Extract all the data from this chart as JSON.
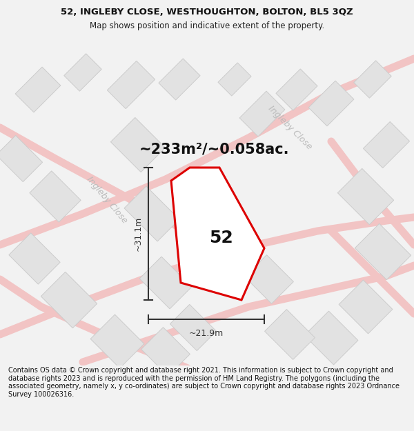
{
  "title": "52, INGLEBY CLOSE, WESTHOUGHTON, BOLTON, BL5 3QZ",
  "subtitle": "Map shows position and indicative extent of the property.",
  "footer": "Contains OS data © Crown copyright and database right 2021. This information is subject to Crown copyright and database rights 2023 and is reproduced with the permission of HM Land Registry. The polygons (including the associated geometry, namely x, y co-ordinates) are subject to Crown copyright and database rights 2023 Ordnance Survey 100026316.",
  "area_label": "~233m²/~0.058ac.",
  "number_label": "52",
  "dim_width_label": "~21.9m",
  "dim_height_label": "~31.1m",
  "bg_color": "#f2f2f2",
  "map_bg": "#f9f9f9",
  "road_color": "#f2c4c4",
  "building_fill": "#e2e2e2",
  "building_edge": "#cccccc",
  "plot_fill": "#ffffff",
  "plot_edge": "#dd0000",
  "street_label_color": "#bbbbbb",
  "dim_color": "#333333",
  "title_fontsize": 9.5,
  "subtitle_fontsize": 8.5,
  "footer_fontsize": 7.0,
  "area_fontsize": 15,
  "number_fontsize": 18,
  "street_fontsize": 9,
  "dim_fontsize": 9
}
